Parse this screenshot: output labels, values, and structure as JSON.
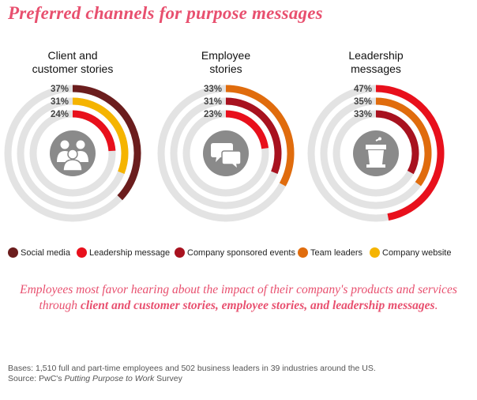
{
  "title": "Preferred channels for purpose messages",
  "legend": [
    {
      "label": "Social media",
      "color": "#6b1d1d"
    },
    {
      "label": "Leadership message",
      "color": "#e8101c"
    },
    {
      "label": "Company sponsored events",
      "color": "#a8121f"
    },
    {
      "label": "Team leaders",
      "color": "#e06c0d"
    },
    {
      "label": "Company website",
      "color": "#f5b400"
    }
  ],
  "chart_data": [
    {
      "type": "radial-bar",
      "title": "Client and customer stories",
      "title_lines": [
        "Client and",
        "customer stories"
      ],
      "icon": "people-group-icon",
      "series": [
        {
          "name": "Social media",
          "value": 37,
          "label": "37%"
        },
        {
          "name": "Company website",
          "value": 31,
          "label": "31%"
        },
        {
          "name": "Leadership message",
          "value": 24,
          "label": "24%"
        }
      ]
    },
    {
      "type": "radial-bar",
      "title": "Employee stories",
      "title_lines": [
        "Employee",
        "stories"
      ],
      "icon": "speech-bubbles-icon",
      "series": [
        {
          "name": "Team leaders",
          "value": 33,
          "label": "33%"
        },
        {
          "name": "Company sponsored events",
          "value": 31,
          "label": "31%"
        },
        {
          "name": "Leadership message",
          "value": 23,
          "label": "23%"
        }
      ]
    },
    {
      "type": "radial-bar",
      "title": "Leadership messages",
      "title_lines": [
        "Leadership",
        "messages"
      ],
      "icon": "podium-icon",
      "series": [
        {
          "name": "Leadership message",
          "value": 47,
          "label": "47%"
        },
        {
          "name": "Team leaders",
          "value": 35,
          "label": "35%"
        },
        {
          "name": "Company sponsored events",
          "value": 33,
          "label": "33%"
        }
      ]
    }
  ],
  "summary": {
    "part1": "Employees most favor hearing about the impact of their company's products and services through ",
    "bold": "client and customer stories, employee stories, and leadership messages",
    "end": "."
  },
  "footnote": {
    "bases": "Bases: 1,510 full and part-time employees and 502 business leaders in 39 industries around the US.",
    "source_prefix": "Source: PwC's ",
    "source_title": "Putting Purpose to Work",
    "source_suffix": " Survey"
  }
}
